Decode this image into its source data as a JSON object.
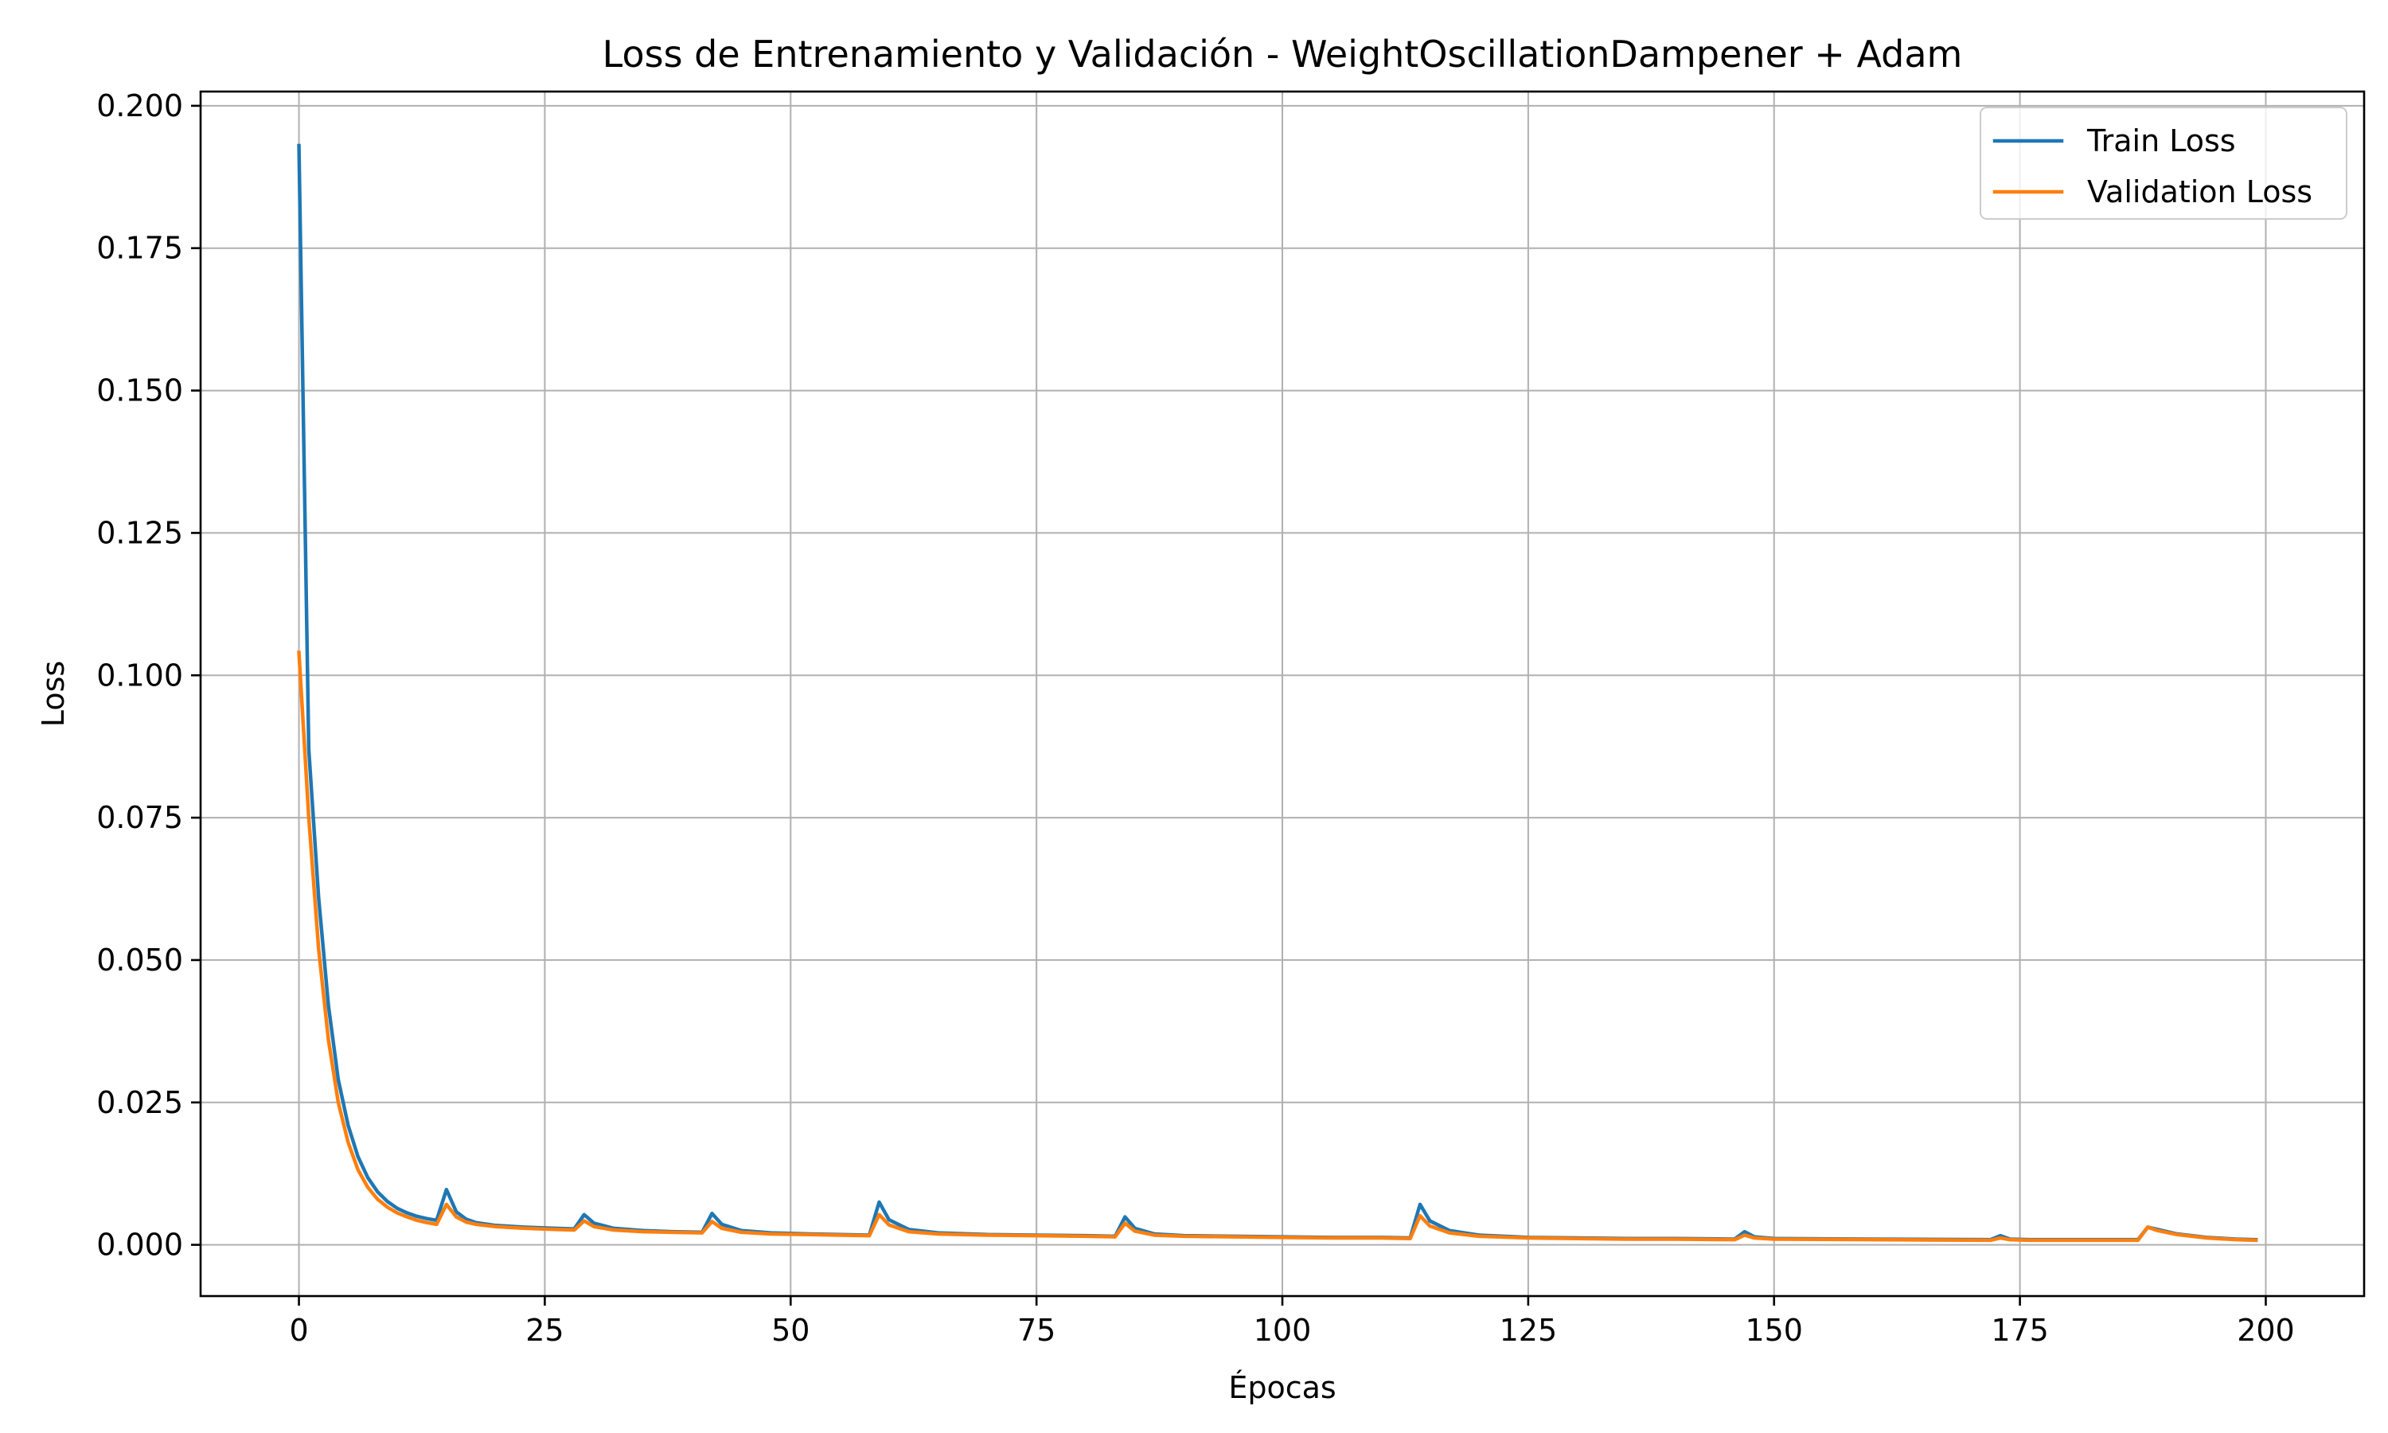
{
  "chart_data": {
    "type": "line",
    "title": "Loss de Entrenamiento y Validación - WeightOscillationDampener + Adam",
    "xlabel": "Épocas",
    "ylabel": "Loss",
    "xlim": [
      -10,
      210
    ],
    "ylim": [
      -0.009,
      0.2025
    ],
    "xticks": [
      0,
      25,
      50,
      75,
      100,
      125,
      150,
      175,
      200
    ],
    "xtick_labels": [
      "0",
      "25",
      "50",
      "75",
      "100",
      "125",
      "150",
      "175",
      "200"
    ],
    "yticks": [
      0.0,
      0.025,
      0.05,
      0.075,
      0.1,
      0.125,
      0.15,
      0.175,
      0.2
    ],
    "ytick_labels": [
      "0.000",
      "0.025",
      "0.050",
      "0.075",
      "0.100",
      "0.125",
      "0.150",
      "0.175",
      "0.200"
    ],
    "grid": true,
    "legend_position": "top-right",
    "series": [
      {
        "name": "Train Loss",
        "color": "#1f77b4",
        "points": [
          [
            0,
            0.193
          ],
          [
            1,
            0.087
          ],
          [
            2,
            0.061
          ],
          [
            3,
            0.042
          ],
          [
            4,
            0.029
          ],
          [
            5,
            0.021
          ],
          [
            6,
            0.0155
          ],
          [
            7,
            0.0118
          ],
          [
            8,
            0.0093
          ],
          [
            9,
            0.0076
          ],
          [
            10,
            0.0064
          ],
          [
            11,
            0.0056
          ],
          [
            12,
            0.005
          ],
          [
            13,
            0.0046
          ],
          [
            14,
            0.0043
          ],
          [
            15,
            0.0097
          ],
          [
            16,
            0.0058
          ],
          [
            17,
            0.0045
          ],
          [
            18,
            0.0039
          ],
          [
            20,
            0.0034
          ],
          [
            23,
            0.0031
          ],
          [
            26,
            0.0029
          ],
          [
            28,
            0.0028
          ],
          [
            29,
            0.0053
          ],
          [
            30,
            0.0038
          ],
          [
            32,
            0.0029
          ],
          [
            35,
            0.0025
          ],
          [
            38,
            0.0023
          ],
          [
            41,
            0.0022
          ],
          [
            42,
            0.0055
          ],
          [
            43,
            0.0036
          ],
          [
            45,
            0.0025
          ],
          [
            48,
            0.0021
          ],
          [
            52,
            0.0019
          ],
          [
            55,
            0.0018
          ],
          [
            58,
            0.0017
          ],
          [
            59,
            0.0075
          ],
          [
            60,
            0.0044
          ],
          [
            62,
            0.0027
          ],
          [
            65,
            0.0021
          ],
          [
            70,
            0.0018
          ],
          [
            75,
            0.0017
          ],
          [
            80,
            0.0016
          ],
          [
            83,
            0.0015
          ],
          [
            84,
            0.0049
          ],
          [
            85,
            0.0029
          ],
          [
            87,
            0.0019
          ],
          [
            90,
            0.0016
          ],
          [
            95,
            0.0015
          ],
          [
            100,
            0.0014
          ],
          [
            105,
            0.0013
          ],
          [
            110,
            0.0013
          ],
          [
            113,
            0.0012
          ],
          [
            114,
            0.0071
          ],
          [
            115,
            0.0042
          ],
          [
            117,
            0.0025
          ],
          [
            120,
            0.0017
          ],
          [
            125,
            0.0013
          ],
          [
            130,
            0.0012
          ],
          [
            135,
            0.0011
          ],
          [
            140,
            0.0011
          ],
          [
            146,
            0.001
          ],
          [
            147,
            0.0023
          ],
          [
            148,
            0.0014
          ],
          [
            150,
            0.0011
          ],
          [
            160,
            0.001
          ],
          [
            172,
            0.0009
          ],
          [
            173,
            0.0016
          ],
          [
            174,
            0.001
          ],
          [
            176,
            0.0009
          ],
          [
            187,
            0.0009
          ],
          [
            188,
            0.0031
          ],
          [
            189,
            0.0027
          ],
          [
            191,
            0.0019
          ],
          [
            194,
            0.0013
          ],
          [
            197,
            0.001
          ],
          [
            199,
            0.0009
          ]
        ]
      },
      {
        "name": "Validation Loss",
        "color": "#ff7f0e",
        "points": [
          [
            0,
            0.104
          ],
          [
            1,
            0.075
          ],
          [
            2,
            0.052
          ],
          [
            3,
            0.036
          ],
          [
            4,
            0.025
          ],
          [
            5,
            0.018
          ],
          [
            6,
            0.0132
          ],
          [
            7,
            0.0101
          ],
          [
            8,
            0.008
          ],
          [
            9,
            0.0066
          ],
          [
            10,
            0.0056
          ],
          [
            11,
            0.0049
          ],
          [
            12,
            0.0043
          ],
          [
            13,
            0.0039
          ],
          [
            14,
            0.0036
          ],
          [
            15,
            0.0071
          ],
          [
            16,
            0.0049
          ],
          [
            17,
            0.004
          ],
          [
            18,
            0.0036
          ],
          [
            20,
            0.0032
          ],
          [
            23,
            0.0029
          ],
          [
            26,
            0.0027
          ],
          [
            28,
            0.0026
          ],
          [
            29,
            0.0042
          ],
          [
            30,
            0.0032
          ],
          [
            32,
            0.0026
          ],
          [
            35,
            0.0023
          ],
          [
            38,
            0.0022
          ],
          [
            41,
            0.0021
          ],
          [
            42,
            0.0041
          ],
          [
            43,
            0.0029
          ],
          [
            45,
            0.0022
          ],
          [
            48,
            0.0019
          ],
          [
            52,
            0.0018
          ],
          [
            55,
            0.0017
          ],
          [
            58,
            0.0016
          ],
          [
            59,
            0.0053
          ],
          [
            60,
            0.0035
          ],
          [
            62,
            0.0023
          ],
          [
            65,
            0.0019
          ],
          [
            70,
            0.0017
          ],
          [
            75,
            0.0016
          ],
          [
            80,
            0.0015
          ],
          [
            83,
            0.0014
          ],
          [
            84,
            0.0038
          ],
          [
            85,
            0.0024
          ],
          [
            87,
            0.0017
          ],
          [
            90,
            0.0015
          ],
          [
            95,
            0.0014
          ],
          [
            100,
            0.0013
          ],
          [
            105,
            0.0012
          ],
          [
            110,
            0.0012
          ],
          [
            113,
            0.0011
          ],
          [
            114,
            0.0051
          ],
          [
            115,
            0.0033
          ],
          [
            117,
            0.0021
          ],
          [
            120,
            0.0015
          ],
          [
            125,
            0.0012
          ],
          [
            130,
            0.0011
          ],
          [
            135,
            0.001
          ],
          [
            140,
            0.001
          ],
          [
            146,
            0.0009
          ],
          [
            147,
            0.0017
          ],
          [
            148,
            0.0012
          ],
          [
            150,
            0.001
          ],
          [
            160,
            0.0009
          ],
          [
            172,
            0.0008
          ],
          [
            173,
            0.0012
          ],
          [
            174,
            0.0009
          ],
          [
            176,
            0.0008
          ],
          [
            187,
            0.0008
          ],
          [
            188,
            0.0031
          ],
          [
            189,
            0.0025
          ],
          [
            191,
            0.0018
          ],
          [
            194,
            0.0012
          ],
          [
            197,
            0.0009
          ],
          [
            199,
            0.0008
          ]
        ]
      }
    ]
  }
}
